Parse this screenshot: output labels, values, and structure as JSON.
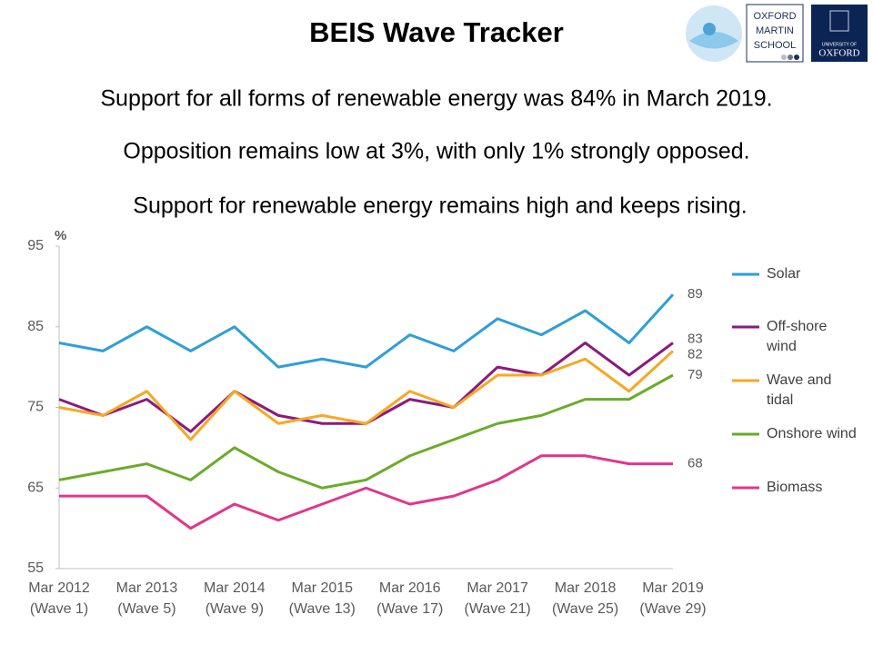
{
  "header": {
    "title": "BEIS Wave Tracker",
    "statements": [
      "Support for all forms of renewable energy was 84% in March 2019.",
      "Opposition remains low at 3%, with only 1% strongly opposed.",
      "Support for renewable energy remains high and keeps rising."
    ],
    "logos": {
      "school": [
        "OXFORD",
        "MARTIN",
        "SCHOOL"
      ],
      "university": [
        "UNIVERSITY OF",
        "OXFORD"
      ]
    }
  },
  "chart_data": {
    "type": "line",
    "y_label": "%",
    "categories": [
      "Mar 2012\n(Wave 1)",
      null,
      "Mar 2013\n(Wave 5)",
      null,
      "Mar 2014\n(Wave 9)",
      null,
      "Mar 2015\n(Wave 13)",
      null,
      "Mar 2016\n(Wave 17)",
      null,
      "Mar 2017\n(Wave 21)",
      null,
      "Mar 2018\n(Wave 25)",
      null,
      "Mar 2019\n(Wave 29)"
    ],
    "series": [
      {
        "name": "Solar",
        "color": "#2e9fd8",
        "values": [
          83,
          82,
          85,
          82,
          85,
          80,
          81,
          80,
          84,
          82,
          86,
          84,
          87,
          83,
          89
        ]
      },
      {
        "name": "Off-shore\nwind",
        "color": "#8b1a7e",
        "values": [
          76,
          74,
          76,
          72,
          77,
          74,
          73,
          73,
          76,
          75,
          80,
          79,
          83,
          79,
          83
        ]
      },
      {
        "name": "Wave and\ntidal",
        "color": "#f7a823",
        "values": [
          75,
          74,
          77,
          71,
          77,
          73,
          74,
          73,
          77,
          75,
          79,
          79,
          81,
          77,
          82
        ]
      },
      {
        "name": "Onshore wind",
        "color": "#6aac2a",
        "values": [
          66,
          67,
          68,
          66,
          70,
          67,
          65,
          66,
          69,
          71,
          73,
          74,
          76,
          76,
          79
        ]
      },
      {
        "name": "Biomass",
        "color": "#e0368c",
        "values": [
          64,
          64,
          64,
          60,
          63,
          61,
          63,
          65,
          63,
          64,
          66,
          69,
          69,
          68,
          68
        ]
      }
    ],
    "ylim": [
      55,
      95
    ],
    "yticks": [
      55,
      65,
      75,
      85,
      95
    ],
    "grid": false,
    "legend": "right"
  }
}
